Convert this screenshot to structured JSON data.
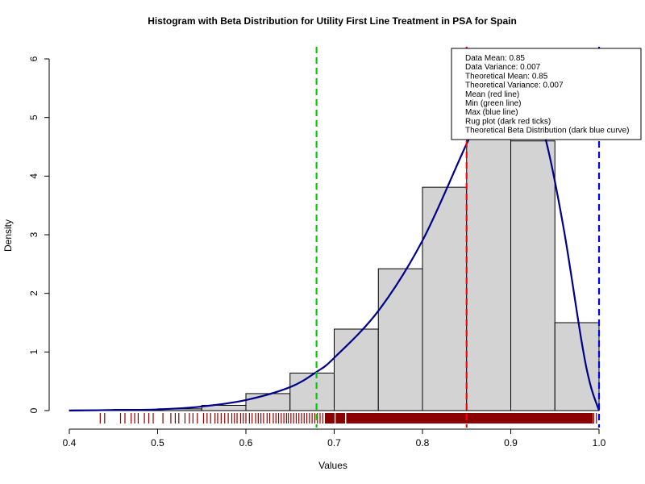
{
  "chart_data": {
    "type": "histogram",
    "title": "Histogram with Beta Distribution for Utility First Line Treatment in PSA for Spain",
    "xlabel": "Values",
    "ylabel": "Density",
    "xlim": [
      0.4,
      1.0
    ],
    "ylim": [
      0,
      6
    ],
    "x_ticks": [
      "0.4",
      "0.5",
      "0.6",
      "0.7",
      "0.8",
      "0.9",
      "1.0"
    ],
    "y_ticks": [
      "0",
      "1",
      "2",
      "3",
      "4",
      "5",
      "6"
    ],
    "bins": [
      {
        "start": 0.4,
        "end": 0.45,
        "density": 0.01
      },
      {
        "start": 0.45,
        "end": 0.5,
        "density": 0.02
      },
      {
        "start": 0.5,
        "end": 0.55,
        "density": 0.03
      },
      {
        "start": 0.55,
        "end": 0.6,
        "density": 0.09
      },
      {
        "start": 0.6,
        "end": 0.65,
        "density": 0.29
      },
      {
        "start": 0.65,
        "end": 0.7,
        "density": 0.64
      },
      {
        "start": 0.7,
        "end": 0.75,
        "density": 1.39
      },
      {
        "start": 0.75,
        "end": 0.8,
        "density": 2.42
      },
      {
        "start": 0.8,
        "end": 0.85,
        "density": 3.81
      },
      {
        "start": 0.85,
        "end": 0.9,
        "density": 5.2
      },
      {
        "start": 0.9,
        "end": 0.95,
        "density": 4.6
      },
      {
        "start": 0.95,
        "end": 1.0,
        "density": 1.5
      }
    ],
    "beta_curve": {
      "x": [
        0.4,
        0.45,
        0.5,
        0.55,
        0.6,
        0.65,
        0.68,
        0.7,
        0.75,
        0.8,
        0.85,
        0.88,
        0.9,
        0.92,
        0.94,
        0.96,
        0.98,
        0.99,
        1.0
      ],
      "y": [
        0.0,
        0.01,
        0.02,
        0.07,
        0.18,
        0.4,
        0.66,
        0.9,
        1.7,
        2.9,
        4.55,
        5.45,
        5.8,
        5.5,
        4.6,
        3.1,
        1.2,
        0.45,
        0.0
      ]
    },
    "vlines": [
      {
        "label": "Mean (red line)",
        "x": 0.85,
        "color": "#ff0000"
      },
      {
        "label": "Min (green line)",
        "x": 0.68,
        "color": "#00cc00"
      },
      {
        "label": "Max (blue line)",
        "x": 1.0,
        "color": "#0000ff"
      }
    ],
    "rug": {
      "color": "#8b0000",
      "sparse": [
        0.435,
        0.44,
        0.458,
        0.463,
        0.47,
        0.474,
        0.478,
        0.485,
        0.49,
        0.495,
        0.506,
        0.515,
        0.52,
        0.524,
        0.531,
        0.536,
        0.54,
        0.545,
        0.552,
        0.556,
        0.56,
        0.565,
        0.568,
        0.572,
        0.576,
        0.58,
        0.584,
        0.587,
        0.59,
        0.594,
        0.597,
        0.6,
        0.604,
        0.607,
        0.611,
        0.614,
        0.617,
        0.62,
        0.624,
        0.627,
        0.631,
        0.634,
        0.637,
        0.64,
        0.643,
        0.646,
        0.648,
        0.651,
        0.654,
        0.657,
        0.66,
        0.663,
        0.666,
        0.669,
        0.672,
        0.675,
        0.678,
        0.681,
        0.684,
        0.687,
        0.69,
        0.7015,
        0.714,
        0.994,
        0.997
      ],
      "dense_range": [
        0.69,
        0.993
      ]
    },
    "legend": {
      "position": "top-right",
      "lines": [
        "Data Mean:  0.85",
        "Data Variance:  0.007",
        "Theoretical Mean:  0.85",
        "Theoretical Variance:  0.007",
        "Mean (red line)",
        "Min (green line)",
        "Max (blue line)",
        "Rug plot (dark red ticks)",
        "Theoretical Beta Distribution (dark blue curve)"
      ]
    },
    "colors": {
      "bar_fill": "#d3d3d3",
      "bar_stroke": "#000000",
      "curve": "#00008b"
    }
  }
}
